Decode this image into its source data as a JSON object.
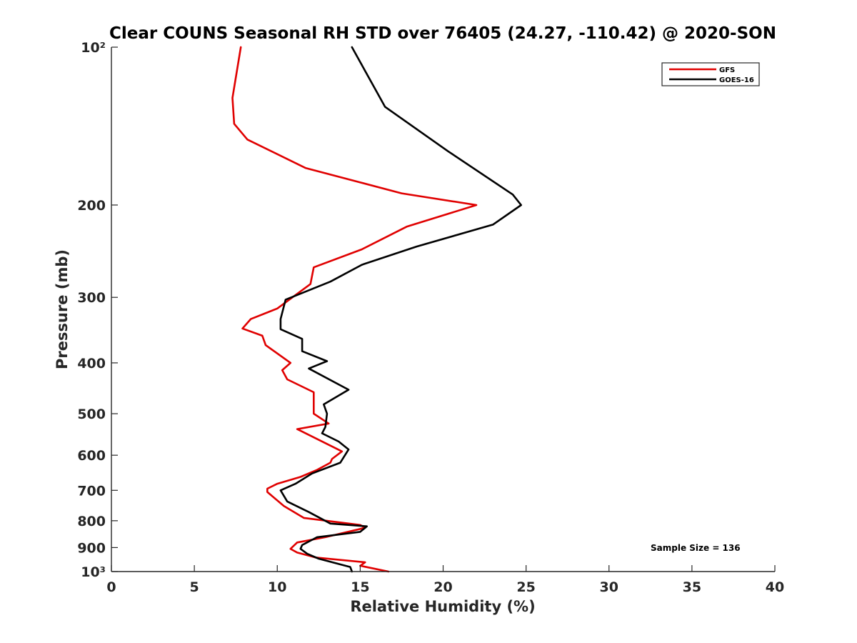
{
  "chart_data": {
    "type": "line",
    "title": "Clear COUNS Seasonal RH STD over 76405 (24.27, -110.42) @ 2020-SON",
    "xlabel": "Relative Humidity (%)",
    "ylabel": "Pressure (mb)",
    "xlim": [
      0,
      40
    ],
    "ylim": [
      100,
      1000
    ],
    "yscale": "log",
    "y_reversed": true,
    "grid": false,
    "x_ticks": [
      0,
      5,
      10,
      15,
      20,
      25,
      30,
      35,
      40
    ],
    "x_tick_labels": [
      "0",
      "5",
      "10",
      "15",
      "20",
      "25",
      "30",
      "35",
      "40"
    ],
    "y_ticks": [
      100,
      200,
      300,
      400,
      500,
      600,
      700,
      800,
      900,
      1000
    ],
    "y_tick_labels": [
      "10²",
      "200",
      "300",
      "400",
      "500",
      "600",
      "700",
      "800",
      "900",
      "10³"
    ],
    "legend_position": "top-right",
    "annotation": "Sample Size = 136",
    "series": [
      {
        "name": "GFS",
        "color": "#e00000",
        "points": [
          [
            7.8,
            100
          ],
          [
            7.3,
            125
          ],
          [
            7.4,
            140
          ],
          [
            8.2,
            150
          ],
          [
            11.7,
            170
          ],
          [
            17.5,
            190
          ],
          [
            22.0,
            200
          ],
          [
            17.8,
            220
          ],
          [
            15.1,
            243
          ],
          [
            12.2,
            263
          ],
          [
            12.0,
            283
          ],
          [
            10.0,
            315
          ],
          [
            8.4,
            330
          ],
          [
            7.9,
            344
          ],
          [
            9.1,
            355
          ],
          [
            9.3,
            370
          ],
          [
            10.8,
            400
          ],
          [
            10.3,
            413
          ],
          [
            10.6,
            430
          ],
          [
            12.2,
            455
          ],
          [
            12.2,
            480
          ],
          [
            12.2,
            500
          ],
          [
            13.1,
            522
          ],
          [
            11.2,
            535
          ],
          [
            13.9,
            590
          ],
          [
            13.3,
            610
          ],
          [
            13.2,
            620
          ],
          [
            12.4,
            640
          ],
          [
            11.4,
            660
          ],
          [
            10.0,
            680
          ],
          [
            9.4,
            695
          ],
          [
            9.4,
            705
          ],
          [
            10.4,
            750
          ],
          [
            11.6,
            790
          ],
          [
            15.0,
            815
          ],
          [
            15.3,
            825
          ],
          [
            12.9,
            860
          ],
          [
            11.2,
            880
          ],
          [
            10.8,
            905
          ],
          [
            11.2,
            920
          ],
          [
            12.3,
            940
          ],
          [
            15.3,
            960
          ],
          [
            15.0,
            975
          ],
          [
            16.7,
            1000
          ]
        ]
      },
      {
        "name": "GOES-16",
        "color": "#000000",
        "points": [
          [
            14.5,
            100
          ],
          [
            16.5,
            130
          ],
          [
            20.3,
            158
          ],
          [
            24.2,
            191
          ],
          [
            24.7,
            200
          ],
          [
            23.0,
            218
          ],
          [
            18.4,
            240
          ],
          [
            15.1,
            260
          ],
          [
            13.2,
            280
          ],
          [
            10.5,
            303
          ],
          [
            10.2,
            330
          ],
          [
            10.2,
            345
          ],
          [
            11.5,
            360
          ],
          [
            11.5,
            380
          ],
          [
            13.0,
            397
          ],
          [
            11.9,
            410
          ],
          [
            14.3,
            450
          ],
          [
            12.8,
            480
          ],
          [
            13.0,
            500
          ],
          [
            12.9,
            530
          ],
          [
            12.7,
            545
          ],
          [
            13.7,
            565
          ],
          [
            14.3,
            585
          ],
          [
            13.8,
            620
          ],
          [
            12.1,
            650
          ],
          [
            11.1,
            680
          ],
          [
            10.2,
            700
          ],
          [
            10.6,
            735
          ],
          [
            11.9,
            770
          ],
          [
            13.2,
            810
          ],
          [
            15.4,
            820
          ],
          [
            15.0,
            840
          ],
          [
            12.4,
            860
          ],
          [
            11.5,
            890
          ],
          [
            11.4,
            905
          ],
          [
            11.8,
            925
          ],
          [
            12.5,
            945
          ],
          [
            14.4,
            980
          ],
          [
            14.5,
            1000
          ]
        ]
      }
    ]
  }
}
